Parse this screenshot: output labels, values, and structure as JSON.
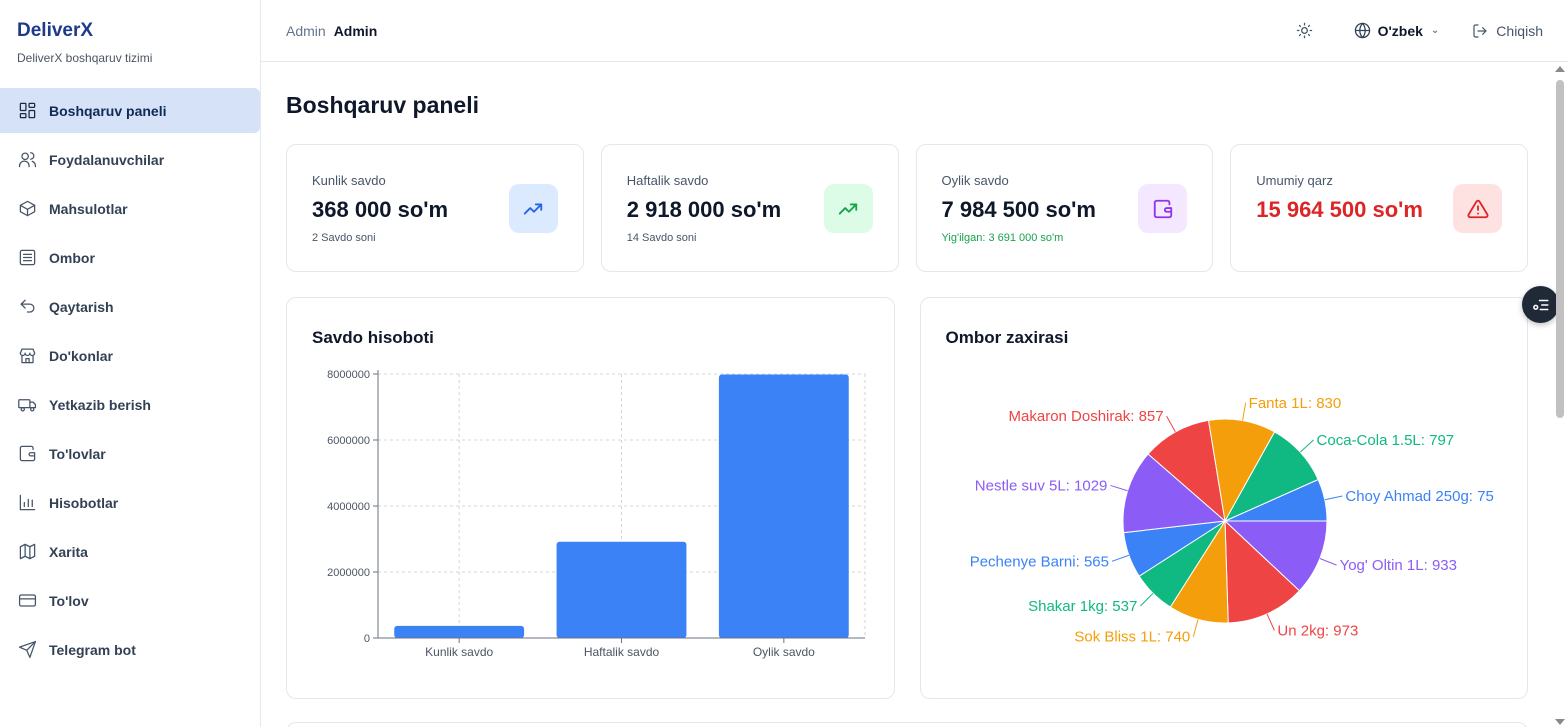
{
  "brand": {
    "title": "DeliverX",
    "subtitle": "DeliverX boshqaruv tizimi"
  },
  "sidebar": {
    "items": [
      {
        "label": "Boshqaruv paneli",
        "icon": "dashboard-icon",
        "active": true
      },
      {
        "label": "Foydalanuvchilar",
        "icon": "users-icon"
      },
      {
        "label": "Mahsulotlar",
        "icon": "box-icon"
      },
      {
        "label": "Ombor",
        "icon": "warehouse-icon"
      },
      {
        "label": "Qaytarish",
        "icon": "undo-icon"
      },
      {
        "label": "Do'konlar",
        "icon": "store-icon"
      },
      {
        "label": "Yetkazib berish",
        "icon": "truck-icon"
      },
      {
        "label": "To'lovlar",
        "icon": "wallet-icon"
      },
      {
        "label": "Hisobotlar",
        "icon": "bar-chart-icon"
      },
      {
        "label": "Xarita",
        "icon": "map-icon"
      },
      {
        "label": "To'lov",
        "icon": "credit-card-icon"
      },
      {
        "label": "Telegram bot",
        "icon": "send-icon"
      }
    ]
  },
  "header": {
    "breadcrumb_root": "Admin",
    "breadcrumb_current": "Admin",
    "language": "O'zbek",
    "logout_label": "Chiqish"
  },
  "page_title": "Boshqaruv paneli",
  "stats": [
    {
      "label": "Kunlik savdo",
      "value": "368 000 so'm",
      "sub": "2 Savdo soni",
      "icon": "trending-up-icon",
      "icon_bg": "#dbeafe",
      "icon_color": "#2563eb"
    },
    {
      "label": "Haftalik savdo",
      "value": "2 918 000 so'm",
      "sub": "14 Savdo soni",
      "icon": "trending-up-icon",
      "icon_bg": "#dcfce7",
      "icon_color": "#16a34a"
    },
    {
      "label": "Oylik savdo",
      "value": "7 984 500 so'm",
      "sub": "Yig'ilgan: 3 691 000 so'm",
      "icon": "wallet-icon",
      "icon_bg": "#f3e8ff",
      "icon_color": "#9333ea"
    },
    {
      "label": "Umumiy qarz",
      "value": "15 964 500 so'm",
      "sub": "",
      "icon": "alert-triangle-icon",
      "icon_bg": "#fee2e2",
      "icon_color": "#dc2626"
    }
  ],
  "chart_data": [
    {
      "type": "bar",
      "title": "Savdo hisoboti",
      "categories": [
        "Kunlik savdo",
        "Haftalik savdo",
        "Oylik savdo"
      ],
      "values": [
        368000,
        2918000,
        7984500
      ],
      "ylim": [
        0,
        8000000
      ],
      "yticks": [
        0,
        2000000,
        4000000,
        6000000,
        8000000
      ],
      "ytick_labels": [
        "0",
        "2000000",
        "4000000",
        "6000000",
        "8000000"
      ],
      "grid": true,
      "color": "#3b82f6"
    },
    {
      "type": "pie",
      "title": "Ombor zaxirasi",
      "slices": [
        {
          "name": "Choy Ahmad 250g",
          "value": 75,
          "label": "Choy Ahmad 250g: 75",
          "color": "#3b82f6"
        },
        {
          "name": "Yog' Oltin 1L",
          "value": 933,
          "label": "Yog' Oltin 1L: 933",
          "color": "#8b5cf6"
        },
        {
          "name": "Un 2kg",
          "value": 973,
          "label": "Un 2kg: 973",
          "color": "#ef4444"
        },
        {
          "name": "Sok Bliss 1L",
          "value": 740,
          "label": "Sok Bliss 1L: 740",
          "color": "#f59e0b"
        },
        {
          "name": "Shakar 1kg",
          "value": 537,
          "label": "Shakar 1kg: 537",
          "color": "#10b981"
        },
        {
          "name": "Pechenye Barni",
          "value": 565,
          "label": "Pechenye Barni: 565",
          "color": "#3b82f6"
        },
        {
          "name": "Nestle suv 5L",
          "value": 1029,
          "label": "Nestle suv 5L: 1029",
          "color": "#8b5cf6"
        },
        {
          "name": "Makaron Doshirak",
          "value": 857,
          "label": "Makaron Doshirak: 857",
          "color": "#ef4444"
        },
        {
          "name": "Fanta 1L",
          "value": 830,
          "label": "Fanta 1L: 830",
          "color": "#f59e0b"
        },
        {
          "name": "Coca-Cola 1.5L",
          "value": 797,
          "label": "Coca-Cola 1.5L: 797",
          "color": "#10b981"
        }
      ]
    }
  ]
}
